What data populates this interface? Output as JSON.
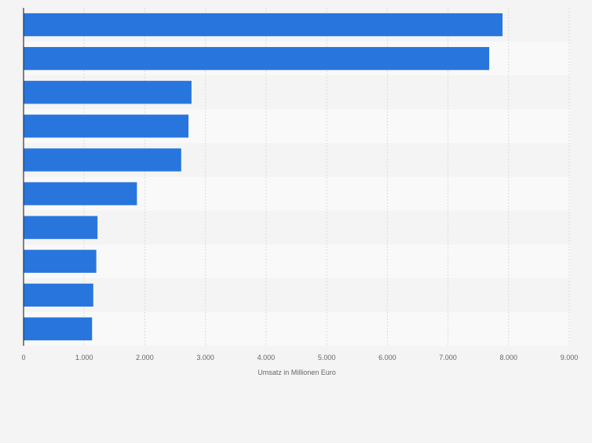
{
  "chart_data": {
    "type": "bar",
    "orientation": "horizontal",
    "title": "",
    "categories": [
      "",
      "",
      "",
      "",
      "",
      "",
      "",
      "",
      "",
      ""
    ],
    "values": [
      7900,
      7680,
      2770,
      2720,
      2600,
      1870,
      1220,
      1200,
      1150,
      1130
    ],
    "xlabel": "Umsatz in Millionen Euro",
    "ylabel": "",
    "xlim": [
      0,
      9000
    ],
    "xticks": [
      0,
      1000,
      2000,
      3000,
      4000,
      5000,
      6000,
      7000,
      8000,
      9000
    ],
    "xtick_labels": [
      "0",
      "1.000",
      "2.000",
      "3.000",
      "4.000",
      "5.000",
      "6.000",
      "7.000",
      "8.000",
      "9.000"
    ],
    "grid": true,
    "colors": {
      "bar": "#2876dd",
      "band_light": "#f4f4f4",
      "band_lighter": "#f9f9f9",
      "grid": "#dcdcdc",
      "axis": "#333333",
      "tick_text": "#666666"
    }
  }
}
